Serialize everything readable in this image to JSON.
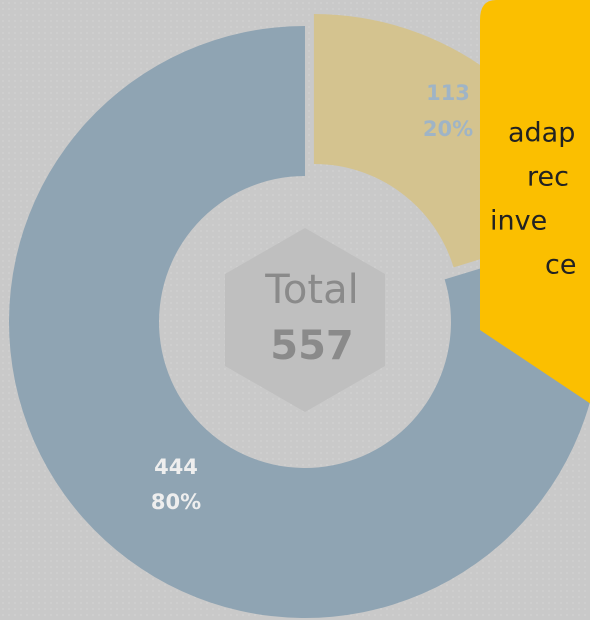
{
  "chart_data": {
    "type": "donut",
    "categories": [
      null,
      null
    ],
    "values": [
      113,
      444
    ],
    "percent_labels": [
      "20%",
      "80%"
    ],
    "colors": [
      "#d4c38f",
      "#8fa4b3"
    ],
    "center_label": "Total",
    "total": 557
  },
  "callout": {
    "lines": [
      "adap",
      "rec",
      "inve",
      "ce"
    ]
  }
}
